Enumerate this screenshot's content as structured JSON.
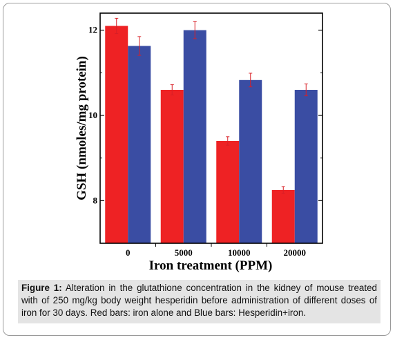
{
  "chart_data": {
    "type": "bar",
    "categories": [
      "0",
      "5000",
      "10000",
      "20000"
    ],
    "series": [
      {
        "values": [
          12.1,
          10.6,
          9.4,
          8.25
        ],
        "errors": [
          0.18,
          0.12,
          0.1,
          0.08
        ],
        "color": "#ee2224"
      },
      {
        "values": [
          11.63,
          12.0,
          10.83,
          10.6
        ],
        "errors": [
          0.22,
          0.2,
          0.16,
          0.14
        ],
        "color": "#3a4da3"
      }
    ],
    "ylabel": "GSH (nmoles/mg protein)",
    "xlabel": "Iron treatment (PPM)",
    "ylim": [
      7,
      12.4
    ],
    "yticks": [
      8,
      10,
      12
    ],
    "errorbar_color": "#d81f26"
  },
  "caption": {
    "label": "Figure 1:",
    "text": " Alteration in the glutathione concentration in the kidney of mouse treated with of 250 mg/kg body weight hesperidin before administration of different doses of iron for 30 days. Red bars: iron alone and Blue bars: Hesperidin+iron."
  }
}
